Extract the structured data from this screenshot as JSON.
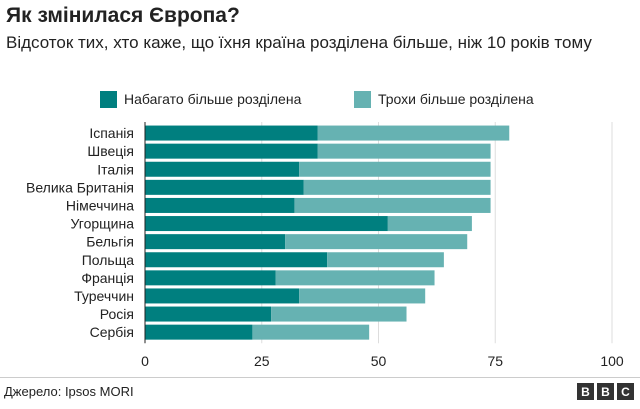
{
  "title": "Як змінилася Європа?",
  "subtitle": "Відсоток тих, хто каже, що їхня країна розділена більше, ніж 10 років тому",
  "source": "Джерело: Ipsos MORI",
  "logo": [
    "B",
    "B",
    "C"
  ],
  "colors": {
    "much_more": "#007f7f",
    "slightly_more": "#66b2b2",
    "grid": "#dddddd",
    "axis": "#222222"
  },
  "chart_data": {
    "type": "bar",
    "orientation": "horizontal",
    "stacked": true,
    "categories": [
      "Іспанія",
      "Швеція",
      "Італія",
      "Велика Британія",
      "Німеччина",
      "Угорщина",
      "Бельгія",
      "Польща",
      "Франція",
      "Туреччин",
      "Росія",
      "Сербія"
    ],
    "series": [
      {
        "name": "Набагато більше розділена",
        "values": [
          37,
          37,
          33,
          34,
          32,
          52,
          30,
          39,
          28,
          33,
          27,
          23
        ]
      },
      {
        "name": "Трохи більше розділена",
        "values": [
          41,
          37,
          41,
          40,
          42,
          18,
          39,
          25,
          34,
          27,
          29,
          25
        ]
      }
    ],
    "xlim": [
      0,
      100
    ],
    "xticks": [
      0,
      25,
      50,
      75,
      100
    ],
    "grid": true,
    "legend_position": "top"
  }
}
